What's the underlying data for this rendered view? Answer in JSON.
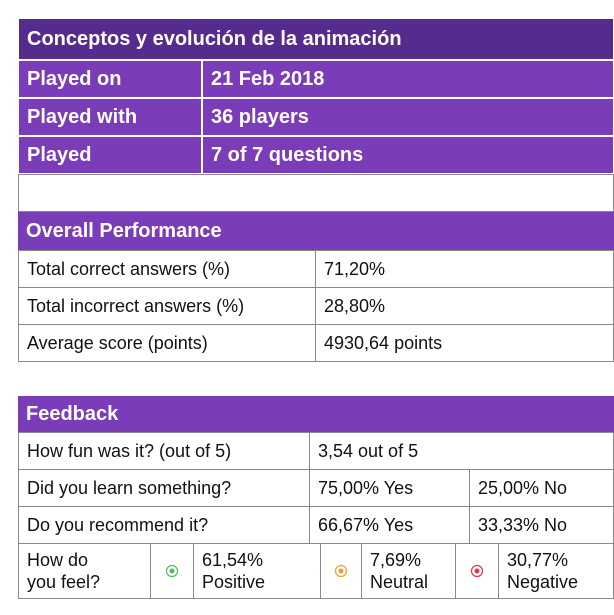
{
  "header": {
    "title": "Conceptos y evolución de la animación",
    "rows": [
      {
        "label": "Played on",
        "value": "21 Feb 2018"
      },
      {
        "label": "Played with",
        "value": "36 players"
      },
      {
        "label": "Played",
        "value": "7 of 7 questions"
      }
    ]
  },
  "overall": {
    "title": "Overall Performance",
    "rows": [
      {
        "label": "Total correct answers (%)",
        "value": "71,20%"
      },
      {
        "label": "Total incorrect answers (%)",
        "value": "28,80%"
      },
      {
        "label": "Average score (points)",
        "value": "4930,64 points"
      }
    ]
  },
  "feedback": {
    "title": "Feedback",
    "rows": [
      {
        "label": "How fun was it? (out of 5)",
        "values": [
          "3,54 out of 5"
        ]
      },
      {
        "label": "Did you learn something?",
        "values": [
          "75,00% Yes",
          "25,00% No"
        ]
      },
      {
        "label": "Do you recommend it?",
        "values": [
          "66,67% Yes",
          "33,33% No"
        ]
      }
    ],
    "feelings": {
      "label": "How do you feel?",
      "options": [
        "61,54% Positive",
        "7,69% Neutral",
        "30,77% Negative"
      ]
    }
  }
}
